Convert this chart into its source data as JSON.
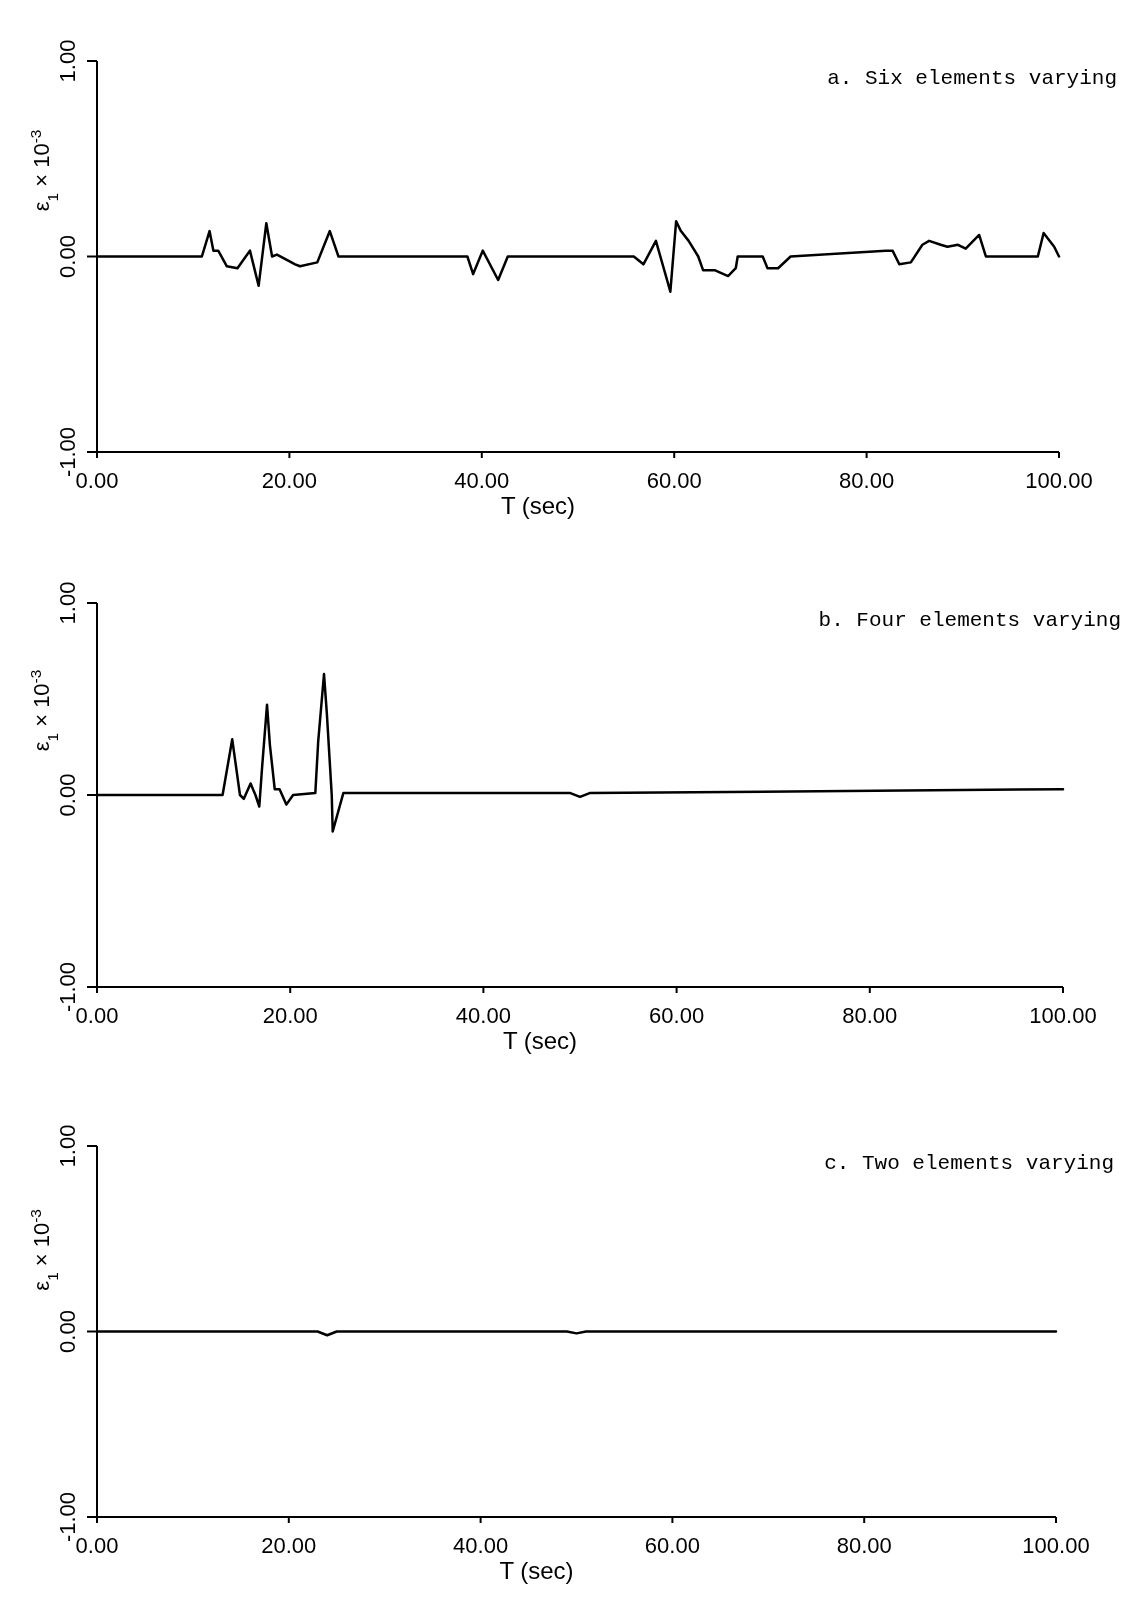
{
  "chart_data": [
    {
      "type": "line",
      "title": "a. Six elements varying",
      "xlabel": "T (sec)",
      "ylabel": "ε$_{1}$ × 10$^{-3}$",
      "xlim": [
        0,
        100
      ],
      "ylim": [
        -1,
        1
      ],
      "xticks": [
        {
          "value": 0,
          "label": "0.00"
        },
        {
          "value": 20,
          "label": "20.00"
        },
        {
          "value": 40,
          "label": "40.00"
        },
        {
          "value": 60,
          "label": "60.00"
        },
        {
          "value": 80,
          "label": "80.00"
        },
        {
          "value": 100,
          "label": "100.00"
        }
      ],
      "yticks": [
        {
          "value": -1,
          "label": "-1.00"
        },
        {
          "value": 0,
          "label": "0.00"
        },
        {
          "value": 1,
          "label": "1.00"
        }
      ],
      "series": [
        {
          "color": "#000000",
          "x": [
            0,
            10.9,
            11.7,
            12.1,
            12.6,
            13.5,
            14.6,
            15.9,
            16.8,
            17.6,
            18.2,
            18.7,
            20.6,
            21.1,
            22.9,
            24.2,
            25.1,
            38.5,
            39.1,
            40.1,
            41.7,
            42.7,
            55.8,
            56.8,
            58.1,
            59.6,
            60.2,
            60.7,
            61.5,
            62.5,
            63.0,
            64.2,
            65.6,
            66.4,
            66.6,
            69.2,
            69.7,
            70.8,
            72.1,
            82.0,
            82.7,
            83.4,
            84.6,
            85.8,
            86.5,
            87.7,
            88.4,
            89.5,
            90.3,
            91.7,
            92.4,
            97.8,
            98.4,
            99.5,
            100
          ],
          "values": [
            0,
            0,
            0.13,
            0.03,
            0.03,
            -0.05,
            -0.06,
            0.03,
            -0.15,
            0.17,
            0,
            0.01,
            -0.04,
            -0.05,
            -0.03,
            0.13,
            0,
            0,
            -0.09,
            0.03,
            -0.12,
            0,
            0,
            -0.04,
            0.08,
            -0.18,
            0.18,
            0.13,
            0.08,
            0,
            -0.07,
            -0.07,
            -0.1,
            -0.06,
            0,
            0,
            -0.06,
            -0.06,
            0,
            0.03,
            0.03,
            -0.04,
            -0.03,
            0.06,
            0.08,
            0.06,
            0.05,
            0.06,
            0.04,
            0.11,
            0,
            0,
            0.12,
            0.05,
            0
          ]
        }
      ]
    },
    {
      "type": "line",
      "title": "b. Four elements varying",
      "xlabel": "T (sec)",
      "ylabel": "ε$_{1}$ × 10$^{-3}$",
      "xlim": [
        0,
        100
      ],
      "ylim": [
        -1,
        1
      ],
      "xticks": [
        {
          "value": 0,
          "label": "0.00"
        },
        {
          "value": 20,
          "label": "20.00"
        },
        {
          "value": 40,
          "label": "40.00"
        },
        {
          "value": 60,
          "label": "60.00"
        },
        {
          "value": 80,
          "label": "80.00"
        },
        {
          "value": 100,
          "label": "100.00"
        }
      ],
      "yticks": [
        {
          "value": -1,
          "label": "-1.00"
        },
        {
          "value": 0,
          "label": "0.00"
        },
        {
          "value": 1,
          "label": "1.00"
        }
      ],
      "series": [
        {
          "color": "#000000",
          "x": [
            0,
            13.0,
            14.0,
            14.8,
            15.2,
            15.9,
            16.4,
            16.8,
            17.1,
            17.6,
            17.9,
            18.4,
            18.9,
            19.6,
            20.3,
            22.6,
            22.9,
            23.5,
            23.8,
            24.3,
            24.4,
            25.5,
            49,
            50,
            51,
            100
          ],
          "values": [
            0,
            0,
            0.29,
            0,
            -0.02,
            0.06,
            0,
            -0.06,
            0.15,
            0.47,
            0.26,
            0.03,
            0.03,
            -0.05,
            0,
            0.01,
            0.28,
            0.63,
            0.42,
            0,
            -0.19,
            0.01,
            0.01,
            -0.01,
            0.01,
            0.03
          ]
        }
      ]
    },
    {
      "type": "line",
      "title": "c. Two elements varying",
      "xlabel": "T (sec)",
      "ylabel": "ε$_{1}$ × 10$^{-3}$",
      "xlim": [
        0,
        100
      ],
      "ylim": [
        -1,
        1
      ],
      "xticks": [
        {
          "value": 0,
          "label": "0.00"
        },
        {
          "value": 20,
          "label": "20.00"
        },
        {
          "value": 40,
          "label": "40.00"
        },
        {
          "value": 60,
          "label": "60.00"
        },
        {
          "value": 80,
          "label": "80.00"
        },
        {
          "value": 100,
          "label": "100.00"
        }
      ],
      "yticks": [
        {
          "value": -1,
          "label": "-1.00"
        },
        {
          "value": 0,
          "label": "0.00"
        },
        {
          "value": 1,
          "label": "1.00"
        }
      ],
      "series": [
        {
          "color": "#000000",
          "x": [
            0,
            23,
            24,
            25,
            49,
            50,
            51,
            100
          ],
          "values": [
            0,
            0,
            -0.02,
            0,
            0,
            -0.01,
            0,
            0
          ]
        }
      ]
    }
  ]
}
